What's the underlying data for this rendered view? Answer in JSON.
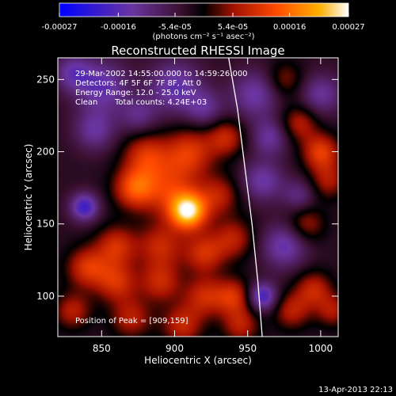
{
  "chart_data": {
    "type": "heatmap",
    "title": "Reconstructed RHESSI Image",
    "xlabel": "Heliocentric X (arcsec)",
    "ylabel": "Heliocentric Y (arcsec)",
    "xlim": [
      820,
      1012
    ],
    "ylim": [
      72,
      265
    ],
    "xticks": [
      850,
      900,
      950,
      1000
    ],
    "yticks": [
      100,
      150,
      200,
      250
    ],
    "colorbar": {
      "label": "(photons cm⁻² s⁻¹ asec⁻²)",
      "range": [
        -0.00027,
        0.00027
      ],
      "tick_labels": [
        "-0.00027",
        "-0.00016",
        "-5.4e-05",
        "5.4e-05",
        "0.00016",
        "0.00027"
      ],
      "tick_values": [
        -0.00027,
        -0.00016,
        -5.4e-05,
        5.4e-05,
        0.00016,
        0.00027
      ],
      "colors": [
        "#0000ff",
        "#6a35a0",
        "#3a1030",
        "#000000",
        "#a01000",
        "#ff4a00",
        "#ffb000",
        "#ffffff"
      ]
    },
    "annotations": {
      "time": "29-Mar-2002 14:55:00.000 to 14:59:26.000",
      "detectors": "Detectors: 4F 5F 6F 7F 8F, Att 0",
      "energy": "Energy Range: 12.0 - 25.0 keV",
      "clean": "Clean",
      "total_counts": "Total counts: 4.24E+03",
      "peak": "Position of Peak = [909,159]"
    },
    "peak": {
      "x": 909,
      "y": 159
    },
    "limb_curve": [
      {
        "x": 937,
        "y": 265
      },
      {
        "x": 943,
        "y": 230
      },
      {
        "x": 948,
        "y": 190
      },
      {
        "x": 953,
        "y": 150
      },
      {
        "x": 957,
        "y": 110
      },
      {
        "x": 960,
        "y": 72
      }
    ],
    "sources": [
      {
        "x": 909,
        "y": 159,
        "amp": 0.00027,
        "sigma": 9
      },
      {
        "x": 895,
        "y": 175,
        "amp": 0.00012,
        "sigma": 14
      },
      {
        "x": 872,
        "y": 175,
        "amp": 0.00015,
        "sigma": 10
      },
      {
        "x": 880,
        "y": 198,
        "amp": 0.00012,
        "sigma": 11
      },
      {
        "x": 910,
        "y": 200,
        "amp": 0.00013,
        "sigma": 12
      },
      {
        "x": 935,
        "y": 210,
        "amp": 0.00011,
        "sigma": 9
      },
      {
        "x": 930,
        "y": 170,
        "amp": 0.0001,
        "sigma": 10
      },
      {
        "x": 940,
        "y": 140,
        "amp": 0.0001,
        "sigma": 10
      },
      {
        "x": 920,
        "y": 130,
        "amp": 0.00012,
        "sigma": 10
      },
      {
        "x": 890,
        "y": 135,
        "amp": 0.00011,
        "sigma": 11
      },
      {
        "x": 860,
        "y": 135,
        "amp": 0.00012,
        "sigma": 10
      },
      {
        "x": 840,
        "y": 120,
        "amp": 0.00013,
        "sigma": 10
      },
      {
        "x": 860,
        "y": 110,
        "amp": 0.00012,
        "sigma": 10
      },
      {
        "x": 890,
        "y": 110,
        "amp": 0.00011,
        "sigma": 10
      },
      {
        "x": 920,
        "y": 100,
        "amp": 0.00011,
        "sigma": 10
      },
      {
        "x": 940,
        "y": 100,
        "amp": 0.00012,
        "sigma": 9
      },
      {
        "x": 830,
        "y": 90,
        "amp": 0.0001,
        "sigma": 9
      },
      {
        "x": 870,
        "y": 85,
        "amp": 0.0001,
        "sigma": 10
      },
      {
        "x": 905,
        "y": 80,
        "amp": 0.00011,
        "sigma": 10
      },
      {
        "x": 945,
        "y": 80,
        "amp": 0.0001,
        "sigma": 9
      },
      {
        "x": 1000,
        "y": 200,
        "amp": 0.00014,
        "sigma": 9
      },
      {
        "x": 985,
        "y": 220,
        "amp": 0.0001,
        "sigma": 9
      },
      {
        "x": 1005,
        "y": 180,
        "amp": 9e-05,
        "sigma": 9
      },
      {
        "x": 990,
        "y": 150,
        "amp": 9e-05,
        "sigma": 9
      },
      {
        "x": 995,
        "y": 105,
        "amp": 0.00011,
        "sigma": 9
      },
      {
        "x": 980,
        "y": 90,
        "amp": 0.0001,
        "sigma": 9
      },
      {
        "x": 1008,
        "y": 90,
        "amp": 9e-05,
        "sigma": 8
      },
      {
        "x": 975,
        "y": 250,
        "amp": 8e-05,
        "sigma": 9
      },
      {
        "x": 850,
        "y": 245,
        "amp": -0.00012,
        "sigma": 13
      },
      {
        "x": 900,
        "y": 245,
        "amp": -0.00012,
        "sigma": 13
      },
      {
        "x": 845,
        "y": 215,
        "amp": -0.0001,
        "sigma": 10
      },
      {
        "x": 838,
        "y": 162,
        "amp": -0.00016,
        "sigma": 7
      },
      {
        "x": 955,
        "y": 240,
        "amp": -0.00011,
        "sigma": 12
      },
      {
        "x": 965,
        "y": 210,
        "amp": -0.0001,
        "sigma": 9
      },
      {
        "x": 960,
        "y": 180,
        "amp": -0.00011,
        "sigma": 10
      },
      {
        "x": 975,
        "y": 135,
        "amp": -0.00012,
        "sigma": 11
      },
      {
        "x": 960,
        "y": 100,
        "amp": -0.00016,
        "sigma": 7
      },
      {
        "x": 1000,
        "y": 240,
        "amp": -0.0001,
        "sigma": 10
      },
      {
        "x": 985,
        "y": 170,
        "amp": -8e-05,
        "sigma": 8
      },
      {
        "x": 875,
        "y": 225,
        "amp": -8e-05,
        "sigma": 9
      },
      {
        "x": 920,
        "y": 230,
        "amp": -9e-05,
        "sigma": 9
      },
      {
        "x": 830,
        "y": 255,
        "amp": -0.0001,
        "sigma": 9
      }
    ]
  },
  "footer": {
    "datetime": "13-Apr-2013 22:13"
  }
}
